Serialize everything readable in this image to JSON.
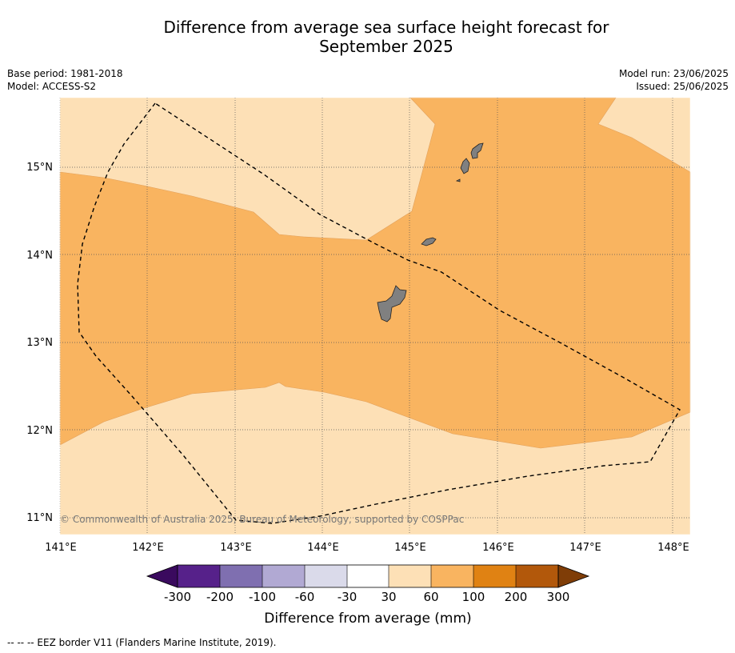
{
  "title": {
    "line1": "Difference from average sea surface height forecast for",
    "line2": "September 2025"
  },
  "meta": {
    "base_period": "Base period: 1981-2018",
    "model": "Model: ACCESS-S2",
    "model_run": "Model run: 23/06/2025",
    "issued": "Issued: 25/06/2025"
  },
  "map": {
    "longitude_ticks": [
      "141°E",
      "142°E",
      "143°E",
      "144°E",
      "145°E",
      "146°E",
      "147°E",
      "148°E"
    ],
    "latitude_ticks": [
      "15°N",
      "14°N",
      "13°N",
      "12°N",
      "11°N"
    ],
    "copyright": "© Commonwealth of Australia 2025, Bureau of Meteorology, supported by COSPPac",
    "colors": {
      "light_peach": "#fde0b6",
      "light_orange": "#f9b460",
      "land": "#808080"
    },
    "islands": [
      "Guam",
      "Rota",
      "Tinian",
      "Saipan"
    ]
  },
  "colorbar": {
    "title": "Difference from average (mm)",
    "labels": [
      "-300",
      "-200",
      "-100",
      "-60",
      "-30",
      "30",
      "60",
      "100",
      "200",
      "300"
    ],
    "colors": [
      "#3a0a5e",
      "#56218a",
      "#7f6fb0",
      "#b1a9d3",
      "#dadaea",
      "#ffffff",
      "#fde0b6",
      "#f9b460",
      "#e08213",
      "#b2580b",
      "#7f3d07"
    ]
  },
  "footer": "--  --  -- EEZ border V11 (Flanders Marine Institute, 2019)."
}
